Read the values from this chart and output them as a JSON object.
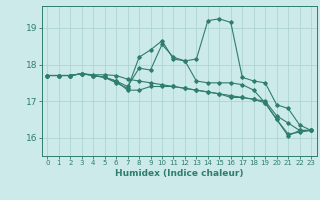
{
  "xlabel": "Humidex (Indice chaleur)",
  "bg_color": "#cdeaea",
  "line_color": "#2e7d6e",
  "grid_color": "#afd4d0",
  "xlim": [
    -0.5,
    23.5
  ],
  "ylim": [
    15.5,
    19.6
  ],
  "yticks": [
    16,
    17,
    18,
    19
  ],
  "xticks": [
    0,
    1,
    2,
    3,
    4,
    5,
    6,
    7,
    8,
    9,
    10,
    11,
    12,
    13,
    14,
    15,
    16,
    17,
    18,
    19,
    20,
    21,
    22,
    23
  ],
  "series": [
    [
      17.7,
      17.7,
      17.7,
      17.75,
      17.72,
      17.72,
      17.7,
      17.6,
      17.55,
      17.5,
      17.45,
      17.4,
      17.35,
      17.3,
      17.25,
      17.2,
      17.15,
      17.1,
      17.05,
      17.0,
      16.6,
      16.4,
      16.2,
      16.2
    ],
    [
      17.7,
      17.7,
      17.7,
      17.75,
      17.7,
      17.65,
      17.55,
      17.4,
      17.9,
      17.85,
      18.55,
      18.2,
      18.1,
      17.55,
      17.5,
      17.5,
      17.5,
      17.45,
      17.3,
      16.95,
      16.5,
      16.1,
      16.15,
      16.2
    ],
    [
      17.7,
      17.7,
      17.7,
      17.75,
      17.7,
      17.65,
      17.5,
      17.35,
      18.2,
      18.4,
      18.65,
      18.15,
      18.1,
      18.15,
      19.2,
      19.25,
      19.15,
      17.65,
      17.55,
      17.5,
      16.9,
      16.8,
      16.35,
      16.2
    ],
    [
      17.7,
      17.7,
      17.7,
      17.75,
      17.7,
      17.65,
      17.55,
      17.3,
      17.3,
      17.4,
      17.4,
      17.4,
      17.35,
      17.3,
      17.25,
      17.2,
      17.1,
      17.1,
      17.05,
      16.95,
      16.5,
      16.05,
      16.2,
      16.2
    ]
  ]
}
